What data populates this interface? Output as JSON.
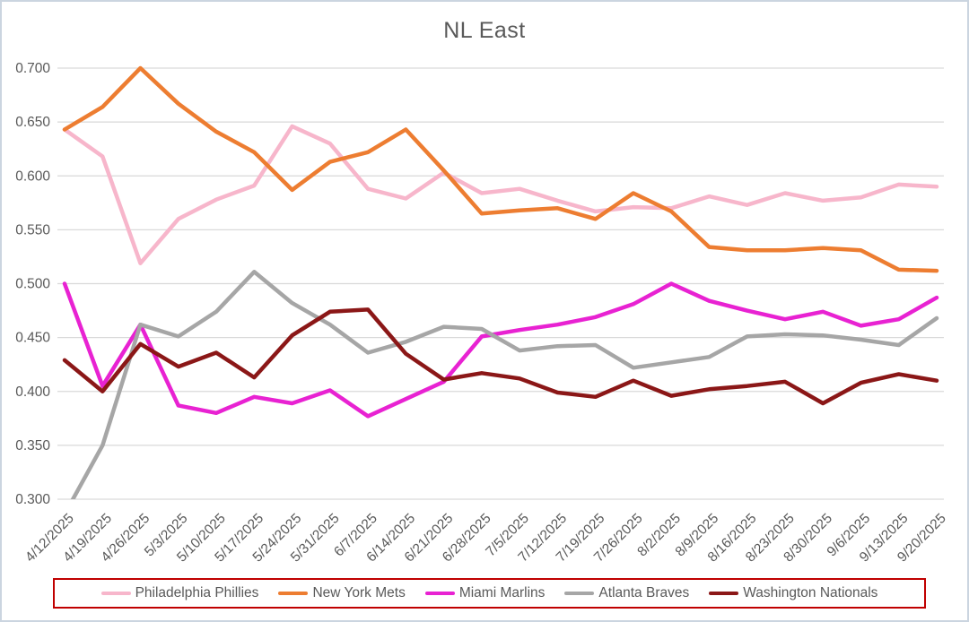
{
  "ui": {
    "window_border_color": "#cbd5e0",
    "background_color": "#ffffff",
    "axis_text_color": "#595959",
    "gridline_color": "#d9d9d9",
    "legend_border_color": "#c00000",
    "title_color": "#595959"
  },
  "chart_data": {
    "type": "line",
    "title": "NL East",
    "xlabel": "",
    "ylabel": "",
    "ylim": [
      0.3,
      0.7
    ],
    "ytick_step": 0.05,
    "yticks": [
      "0.700",
      "0.650",
      "0.600",
      "0.550",
      "0.500",
      "0.450",
      "0.400",
      "0.350",
      "0.300"
    ],
    "grid": true,
    "legend_position": "bottom",
    "x_labels_rotation_deg": 45,
    "categories": [
      "4/12/2025",
      "4/19/2025",
      "4/26/2025",
      "5/3/2025",
      "5/10/2025",
      "5/17/2025",
      "5/24/2025",
      "5/31/2025",
      "6/7/2025",
      "6/14/2025",
      "6/21/2025",
      "6/28/2025",
      "7/5/2025",
      "7/12/2025",
      "7/19/2025",
      "7/26/2025",
      "8/2/2025",
      "8/9/2025",
      "8/16/2025",
      "8/23/2025",
      "8/30/2025",
      "9/6/2025",
      "9/13/2025",
      "9/20/2025"
    ],
    "series": [
      {
        "name": "Philadelphia Phillies",
        "color": "#f7b6cb",
        "values": [
          0.643,
          0.618,
          0.519,
          0.56,
          0.578,
          0.591,
          0.646,
          0.63,
          0.588,
          0.579,
          0.603,
          0.584,
          0.588,
          0.577,
          0.567,
          0.571,
          0.57,
          0.581,
          0.573,
          0.584,
          0.577,
          0.58,
          0.592,
          0.59
        ]
      },
      {
        "name": "New York Mets",
        "color": "#ed7d31",
        "values": [
          0.643,
          0.664,
          0.7,
          0.667,
          0.641,
          0.622,
          0.587,
          0.613,
          0.622,
          0.643,
          0.605,
          0.565,
          0.568,
          0.57,
          0.56,
          0.584,
          0.567,
          0.534,
          0.531,
          0.531,
          0.533,
          0.531,
          0.513,
          0.512
        ]
      },
      {
        "name": "Miami Marlins",
        "color": "#e822d2",
        "values": [
          0.5,
          0.405,
          0.462,
          0.387,
          0.38,
          0.395,
          0.389,
          0.401,
          0.377,
          0.393,
          0.409,
          0.451,
          0.457,
          0.462,
          0.469,
          0.481,
          0.5,
          0.484,
          0.475,
          0.467,
          0.474,
          0.461,
          0.467,
          0.487
        ]
      },
      {
        "name": "Atlanta Braves",
        "color": "#a6a6a6",
        "values": [
          0.286,
          0.35,
          0.462,
          0.451,
          0.474,
          0.511,
          0.482,
          0.462,
          0.436,
          0.446,
          0.46,
          0.458,
          0.438,
          0.442,
          0.443,
          0.422,
          0.427,
          0.432,
          0.451,
          0.453,
          0.452,
          0.448,
          0.443,
          0.468
        ]
      },
      {
        "name": "Washington Nationals",
        "color": "#8b1717",
        "values": [
          0.429,
          0.4,
          0.444,
          0.423,
          0.436,
          0.413,
          0.452,
          0.474,
          0.476,
          0.435,
          0.411,
          0.417,
          0.412,
          0.399,
          0.395,
          0.41,
          0.396,
          0.402,
          0.405,
          0.409,
          0.389,
          0.408,
          0.416,
          0.41
        ]
      }
    ]
  }
}
